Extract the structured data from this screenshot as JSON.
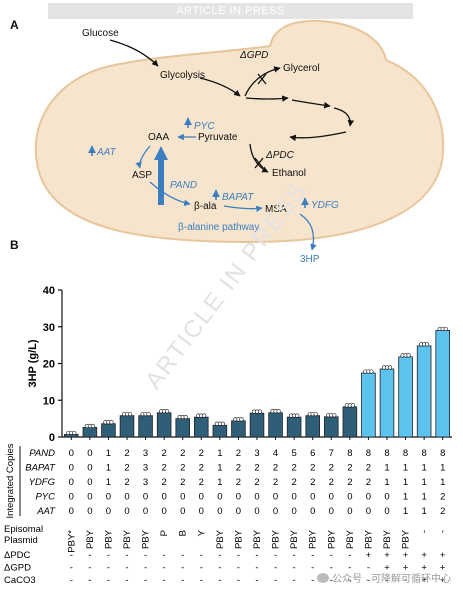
{
  "banner": "ARTICLE IN PRESS",
  "watermark": "ARTICLE IN PRESS",
  "wechat": "公众号 · 可降解可循环中心",
  "panel_a": {
    "label": "A",
    "glucose": "Glucose",
    "glycolysis": "Glycolysis",
    "gpd": "ΔGPD",
    "glycerol": "Glycerol",
    "pyruvate": "Pyruvate",
    "oaa": "OAA",
    "pyc": "PYC",
    "aat": "AAT",
    "asp": "ASP",
    "pand": "PAND",
    "pdc": "ΔPDC",
    "ethanol": "Ethanol",
    "bala": "β-ala",
    "bapat": "BAPAT",
    "msa": "MSA",
    "ydfg": "YDFG",
    "pathway": "β-alanine pathway",
    "hp": "3HP",
    "colors": {
      "cell": "#f7e4cc",
      "cell_edge": "#e8c59b",
      "blue": "#3c7fc1"
    }
  },
  "panel_b": {
    "label": "B",
    "ylabel": "3HP (g/L)",
    "side_label": "Integrated Copies",
    "row_labels": [
      "PAND",
      "BAPAT",
      "YDFG",
      "PYC",
      "AAT"
    ],
    "rows": [
      [
        "0",
        "0",
        "1",
        "2",
        "3",
        "2",
        "2",
        "2",
        "1",
        "2",
        "3",
        "4",
        "5",
        "6",
        "7",
        "8",
        "8",
        "8",
        "8",
        "8",
        "8"
      ],
      [
        "0",
        "0",
        "1",
        "2",
        "3",
        "2",
        "2",
        "2",
        "1",
        "2",
        "2",
        "2",
        "2",
        "2",
        "2",
        "2",
        "2",
        "1",
        "1",
        "1",
        "1"
      ],
      [
        "0",
        "0",
        "1",
        "2",
        "3",
        "2",
        "2",
        "2",
        "1",
        "2",
        "2",
        "2",
        "2",
        "2",
        "2",
        "2",
        "2",
        "1",
        "1",
        "1",
        "1"
      ],
      [
        "0",
        "0",
        "0",
        "0",
        "0",
        "0",
        "0",
        "0",
        "0",
        "0",
        "0",
        "0",
        "0",
        "0",
        "0",
        "0",
        "0",
        "0",
        "1",
        "1",
        "2"
      ],
      [
        "0",
        "0",
        "0",
        "0",
        "0",
        "0",
        "0",
        "0",
        "0",
        "0",
        "0",
        "0",
        "0",
        "0",
        "0",
        "0",
        "0",
        "0",
        "1",
        "1",
        "2"
      ]
    ],
    "plasmid_label_1": "Episomal",
    "plasmid_label_2": "Plasmid",
    "plasmids": [
      "PBY*",
      "PBY",
      "PBY",
      "PBY",
      "PBY",
      "P",
      "B",
      "Y",
      "PBY",
      "PBY",
      "PBY",
      "PBY",
      "PBY",
      "PBY",
      "PBY",
      "PBY",
      "PBY",
      "PBY",
      "PBY",
      "-",
      "-"
    ],
    "extra_labels": [
      "ΔPDC",
      "ΔGPD",
      "CaCO3"
    ],
    "extra_rows": [
      [
        "-",
        "-",
        "-",
        "-",
        "-",
        "-",
        "-",
        "-",
        "-",
        "-",
        "-",
        "-",
        "-",
        "-",
        "-",
        "-",
        "+",
        "+",
        "+",
        "+",
        "+"
      ],
      [
        "-",
        "-",
        "-",
        "-",
        "-",
        "-",
        "-",
        "-",
        "-",
        "-",
        "-",
        "-",
        "-",
        "-",
        "-",
        "-",
        "-",
        "+",
        "+",
        "+",
        "+"
      ],
      [
        "-",
        "-",
        "-",
        "-",
        "-",
        "-",
        "-",
        "-",
        "-",
        "-",
        "-",
        "-",
        "-",
        "-",
        "-",
        "-",
        "-",
        "-",
        "-",
        "+",
        "+"
      ]
    ],
    "colors": {
      "dark": "#2f5f78",
      "light": "#5cc2ee",
      "edge": "#222222"
    }
  },
  "chart_data": {
    "type": "bar",
    "title": "",
    "xlabel": "",
    "ylabel": "3HP (g/L)",
    "ylim": [
      0,
      40
    ],
    "yticks": [
      0,
      10,
      20,
      30,
      40
    ],
    "grid": false,
    "categories": [
      "1",
      "2",
      "3",
      "4",
      "5",
      "6",
      "7",
      "8",
      "9",
      "10",
      "11",
      "12",
      "13",
      "14",
      "15",
      "16",
      "17",
      "18",
      "19",
      "20",
      "21"
    ],
    "values": [
      0.7,
      2.6,
      3.6,
      5.8,
      5.8,
      6.6,
      5.0,
      5.4,
      3.2,
      4.4,
      6.5,
      6.6,
      5.4,
      5.8,
      5.5,
      8.2,
      17.4,
      18.5,
      21.8,
      24.8,
      29.0
    ],
    "bar_style": [
      "dark",
      "dark",
      "dark",
      "dark",
      "dark",
      "dark",
      "dark",
      "dark",
      "dark",
      "dark",
      "dark",
      "dark",
      "dark",
      "dark",
      "dark",
      "dark",
      "light",
      "light",
      "light",
      "light",
      "light"
    ]
  }
}
